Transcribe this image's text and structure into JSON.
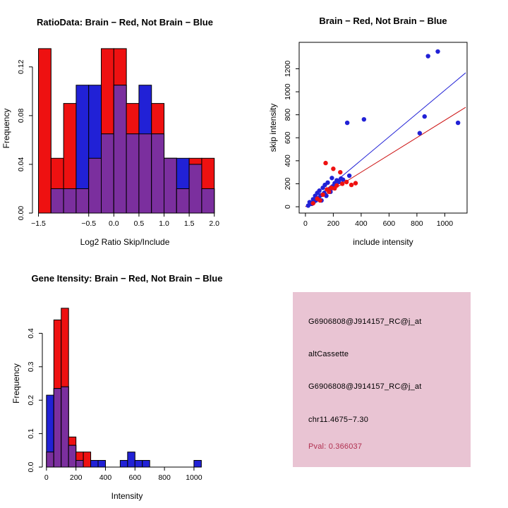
{
  "chart_data": [
    {
      "type": "bar",
      "variant": "overlaid-histogram",
      "title": "RatioData: Brain − Red, Not Brain − Blue",
      "xlabel": "Log2 Ratio Skip/Include",
      "ylabel": "Frequency",
      "bin_start": -1.5,
      "bin_width": 0.25,
      "xlim": [
        -1.62,
        2.06
      ],
      "ylim": [
        0,
        0.139
      ],
      "xticks": [
        -1.5,
        -0.5,
        0,
        0.5,
        1,
        1.5,
        2
      ],
      "xtick_labels": [
        "−1.5",
        "−0.5",
        "0.0",
        "0.5",
        "1.0",
        "1.5",
        "2.0"
      ],
      "yticks": [
        0,
        0.04,
        0.08,
        0.12
      ],
      "ytick_labels": [
        "0.00",
        "0.04",
        "0.08",
        "0.12"
      ],
      "series": [
        {
          "name": "Brain (red)",
          "color": "#ee1111",
          "values": [
            0.135,
            0.045,
            0.09,
            0.02,
            0.045,
            0.135,
            0.135,
            0.09,
            0.065,
            0.09,
            0.045,
            0.02,
            0.045,
            0.045
          ]
        },
        {
          "name": "Not Brain (blue)",
          "color": "#2121d6",
          "values": [
            0,
            0.02,
            0.02,
            0.105,
            0.105,
            0.065,
            0.105,
            0.065,
            0.105,
            0.065,
            0.045,
            0.045,
            0.04,
            0.02
          ]
        }
      ],
      "overlap_color": "#7b2f9e",
      "grid": false,
      "legend": "none"
    },
    {
      "type": "scatter",
      "title": "Brain − Red, Not Brain − Blue",
      "xlabel": "include intensity",
      "ylabel": "skip intensity",
      "xlim": [
        -45,
        1160
      ],
      "ylim": [
        -55,
        1430
      ],
      "xticks": [
        0,
        200,
        400,
        600,
        800,
        1000
      ],
      "xtick_labels": [
        "0",
        "200",
        "400",
        "600",
        "800",
        "1000"
      ],
      "yticks": [
        0,
        200,
        400,
        600,
        800,
        1000,
        1200
      ],
      "ytick_labels": [
        "0",
        "200",
        "400",
        "600",
        "800",
        "1000",
        "1200"
      ],
      "series": [
        {
          "name": "Not Brain (blue)",
          "color": "#2121d6",
          "points": [
            [
              20,
              10
            ],
            [
              30,
              40
            ],
            [
              45,
              25
            ],
            [
              55,
              65
            ],
            [
              60,
              40
            ],
            [
              70,
              95
            ],
            [
              75,
              55
            ],
            [
              85,
              120
            ],
            [
              95,
              75
            ],
            [
              100,
              140
            ],
            [
              110,
              100
            ],
            [
              115,
              55
            ],
            [
              125,
              165
            ],
            [
              135,
              120
            ],
            [
              140,
              190
            ],
            [
              150,
              95
            ],
            [
              160,
              210
            ],
            [
              170,
              150
            ],
            [
              180,
              130
            ],
            [
              190,
              250
            ],
            [
              200,
              175
            ],
            [
              210,
              205
            ],
            [
              225,
              230
            ],
            [
              240,
              215
            ],
            [
              255,
              245
            ],
            [
              270,
              235
            ],
            [
              300,
              730
            ],
            [
              315,
              270
            ],
            [
              420,
              760
            ],
            [
              820,
              640
            ],
            [
              855,
              785
            ],
            [
              880,
              1310
            ],
            [
              950,
              1350
            ],
            [
              1095,
              730
            ]
          ]
        },
        {
          "name": "Brain (red)",
          "color": "#ee1111",
          "points": [
            [
              55,
              30
            ],
            [
              85,
              70
            ],
            [
              105,
              55
            ],
            [
              125,
              105
            ],
            [
              145,
              380
            ],
            [
              155,
              150
            ],
            [
              170,
              130
            ],
            [
              185,
              165
            ],
            [
              200,
              330
            ],
            [
              210,
              160
            ],
            [
              225,
              185
            ],
            [
              250,
              300
            ],
            [
              265,
              200
            ],
            [
              295,
              215
            ],
            [
              330,
              190
            ],
            [
              360,
              205
            ]
          ]
        }
      ],
      "lines": [
        {
          "name": "not-brain-fit",
          "color": "#2121d6",
          "x": [
            0,
            1150
          ],
          "y": [
            0,
            1165
          ]
        },
        {
          "name": "brain-fit",
          "color": "#cc1111",
          "x": [
            0,
            1150
          ],
          "y": [
            0,
            865
          ]
        }
      ],
      "grid": false,
      "legend": "none"
    },
    {
      "type": "bar",
      "variant": "overlaid-histogram",
      "title": "Gene Itensity: Brain − Red, Not Brain − Blue",
      "xlabel": "Intensity",
      "ylabel": "Frequency",
      "bin_start": 0,
      "bin_width": 50,
      "xlim": [
        -28,
        1120
      ],
      "ylim": [
        0,
        0.5
      ],
      "xticks": [
        0,
        200,
        400,
        600,
        800,
        1000
      ],
      "xtick_labels": [
        "0",
        "200",
        "400",
        "600",
        "800",
        "1000"
      ],
      "yticks": [
        0,
        0.1,
        0.2,
        0.3,
        0.4
      ],
      "ytick_labels": [
        "0.0",
        "0.1",
        "0.2",
        "0.3",
        "0.4"
      ],
      "series": [
        {
          "name": "Brain (red)",
          "color": "#ee1111",
          "values": [
            0.045,
            0.44,
            0.475,
            0.09,
            0.045,
            0.045,
            0,
            0,
            0,
            0,
            0,
            0,
            0,
            0,
            0,
            0,
            0,
            0,
            0,
            0,
            0,
            0
          ]
        },
        {
          "name": "Not Brain (blue)",
          "color": "#2121d6",
          "values": [
            0.215,
            0.235,
            0.24,
            0.065,
            0.02,
            0,
            0.02,
            0.02,
            0,
            0,
            0.02,
            0.045,
            0.02,
            0.02,
            0,
            0,
            0,
            0,
            0,
            0,
            0.02,
            0
          ]
        }
      ],
      "overlap_color": "#7b2f9e",
      "grid": false,
      "legend": "none"
    }
  ],
  "info_panel": {
    "bg_color": "#e9c4d3",
    "text_color": "#000000",
    "pval_color": "#b03050",
    "lines": [
      "G6906808@J914157_RC@j_at",
      "altCassette",
      "G6906808@J914157_RC@j_at",
      "chr11.4675−7.30",
      "Pval: 0.366037"
    ]
  }
}
